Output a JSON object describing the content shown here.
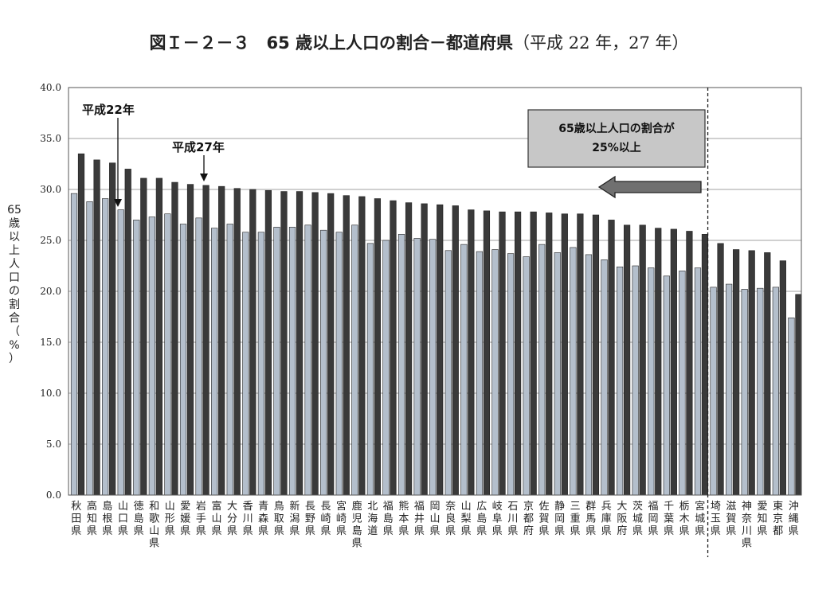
{
  "title_main": "図Ｉ－２－３　65 歳以上人口の割合－都道府県",
  "title_sub": "（平成 22 年，27 年）",
  "chart_data": {
    "type": "bar",
    "title": "図Ｉ－２－３　65 歳以上人口の割合－都道府県（平成 22 年，27 年）",
    "ylabel": "65歳以上人口の割合（%）",
    "ylim": [
      0,
      40
    ],
    "yticks": [
      "0.0",
      "5.0",
      "10.0",
      "15.0",
      "20.0",
      "25.0",
      "30.0",
      "35.0",
      "40.0"
    ],
    "grid": true,
    "categories": [
      "秋田県",
      "高知県",
      "島根県",
      "山口県",
      "徳島県",
      "和歌山県",
      "山形県",
      "愛媛県",
      "岩手県",
      "富山県",
      "大分県",
      "香川県",
      "青森県",
      "鳥取県",
      "新潟県",
      "長野県",
      "長崎県",
      "宮崎県",
      "鹿児島県",
      "北海道",
      "福島県",
      "熊本県",
      "福井県",
      "岡山県",
      "奈良県",
      "山梨県",
      "広島県",
      "岐阜県",
      "石川県",
      "京都府",
      "佐賀県",
      "静岡県",
      "三重県",
      "群馬県",
      "兵庫県",
      "大阪府",
      "茨城県",
      "福岡県",
      "千葉県",
      "栃木県",
      "宮城県",
      "埼玉県",
      "滋賀県",
      "神奈川県",
      "愛知県",
      "東京都",
      "沖縄県"
    ],
    "series": [
      {
        "name": "平成22年",
        "color": "#b4bfcc",
        "values": [
          29.6,
          28.8,
          29.1,
          28.0,
          27.0,
          27.3,
          27.6,
          26.6,
          27.2,
          26.2,
          26.6,
          25.8,
          25.8,
          26.3,
          26.3,
          26.5,
          26.0,
          25.8,
          26.5,
          24.7,
          25.0,
          25.6,
          25.2,
          25.1,
          24.0,
          24.6,
          23.9,
          24.1,
          23.7,
          23.4,
          24.6,
          23.8,
          24.3,
          23.6,
          23.1,
          22.4,
          22.5,
          22.3,
          21.5,
          22.0,
          22.3,
          20.4,
          20.7,
          20.2,
          20.3,
          20.4,
          17.4
        ]
      },
      {
        "name": "平成27年",
        "color": "#3a3a3a",
        "values": [
          33.5,
          32.9,
          32.6,
          32.0,
          31.1,
          31.1,
          30.7,
          30.5,
          30.4,
          30.3,
          30.1,
          30.0,
          29.9,
          29.8,
          29.8,
          29.7,
          29.6,
          29.4,
          29.3,
          29.1,
          28.9,
          28.7,
          28.6,
          28.5,
          28.4,
          28.0,
          27.9,
          27.8,
          27.8,
          27.8,
          27.7,
          27.6,
          27.6,
          27.5,
          27.0,
          26.5,
          26.5,
          26.2,
          26.1,
          25.9,
          25.6,
          24.7,
          24.1,
          24.0,
          23.8,
          23.0,
          19.7
        ]
      }
    ],
    "annotations": {
      "label_h22": "平成22年",
      "label_h27": "平成27年",
      "box_line1": "65歳以上人口の割合が",
      "box_line2": "25%以上"
    },
    "divider_after_index": 40
  }
}
